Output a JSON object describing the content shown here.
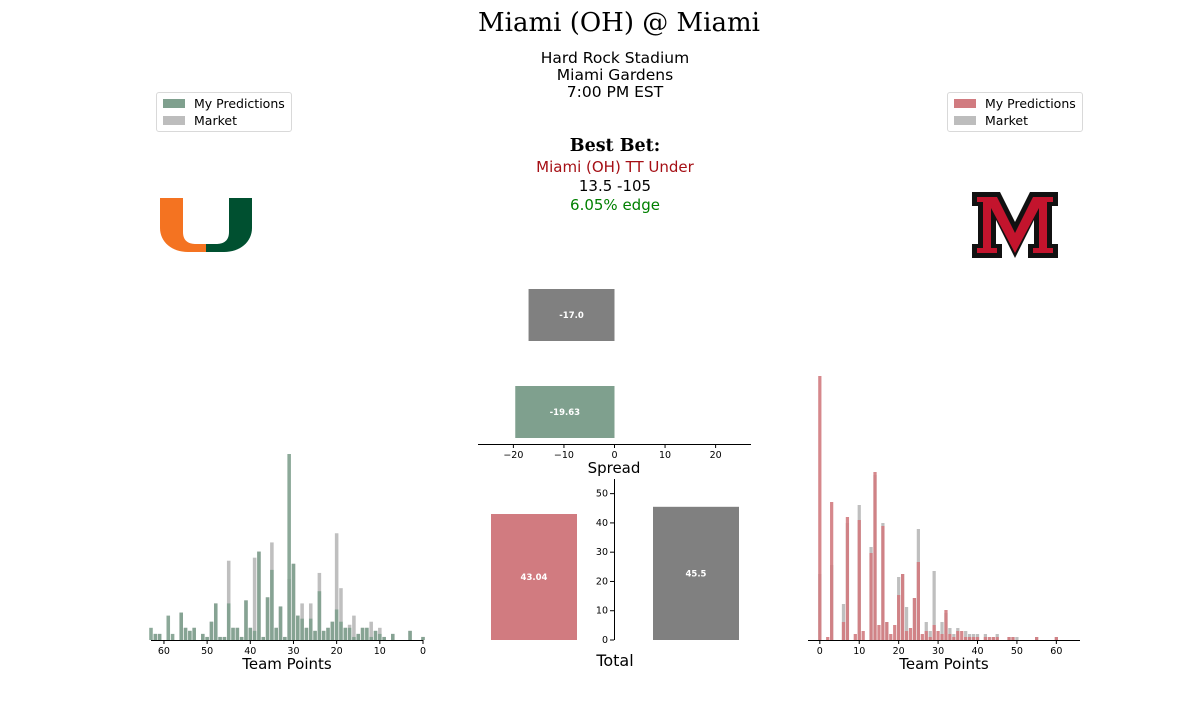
{
  "header": {
    "title": "Miami (OH) @ Miami",
    "stadium": "Hard Rock Stadium",
    "city": "Miami Gardens",
    "time": "7:00 PM EST"
  },
  "best_bet": {
    "title": "Best Bet:",
    "pick": "Miami (OH) TT Under",
    "line": "13.5 -105",
    "edge": "6.05% edge"
  },
  "colors": {
    "home": "#7fa08e",
    "away": "#d17b80",
    "market": "#808080",
    "market_light": "#bdbdbd",
    "pick": "#a50f15",
    "edge": "#008000"
  },
  "left_legend": {
    "predictions": "My Predictions",
    "market": "Market"
  },
  "right_legend": {
    "predictions": "My Predictions",
    "market": "Market"
  },
  "logos": {
    "home": "miami-u-logo",
    "away": "miami-oh-m-logo"
  },
  "chart_data": [
    {
      "id": "home-points",
      "type": "bar",
      "xlabel": "Team Points",
      "x_reversed": true,
      "xlim": [
        63,
        0
      ],
      "xticks": [
        60,
        50,
        40,
        30,
        20,
        10,
        0
      ],
      "series": [
        {
          "name": "My Predictions",
          "x": [
            63,
            62,
            61,
            59,
            58,
            56,
            55,
            54,
            53,
            51,
            50,
            49,
            48,
            47,
            46,
            45,
            44,
            43,
            42,
            41,
            40,
            39,
            38,
            37,
            36,
            35,
            34,
            33,
            32,
            31,
            30,
            29,
            28,
            27,
            26,
            25,
            24,
            23,
            22,
            21,
            20,
            19,
            18,
            17,
            16,
            15,
            14,
            13,
            12,
            11,
            10,
            9,
            7,
            3,
            0
          ],
          "values": [
            4,
            2,
            2,
            8,
            2,
            9,
            4,
            3,
            4,
            2,
            1,
            6,
            12,
            1,
            1,
            12,
            4,
            4,
            1,
            13,
            4,
            3,
            29,
            1,
            14,
            23,
            4,
            11,
            1,
            61,
            25,
            8,
            7,
            4,
            7,
            3,
            16,
            3,
            4,
            6,
            10,
            6,
            4,
            4,
            1,
            2,
            4,
            4,
            1,
            3,
            2,
            1,
            2,
            3,
            1
          ]
        },
        {
          "name": "Market",
          "x": [
            62,
            61,
            56,
            55,
            54,
            53,
            51,
            50,
            49,
            48,
            47,
            46,
            45,
            44,
            43,
            42,
            41,
            40,
            39,
            38,
            37,
            36,
            35,
            34,
            33,
            32,
            31,
            30,
            29,
            28,
            27,
            26,
            25,
            24,
            23,
            22,
            21,
            20,
            19,
            18,
            17,
            16,
            15,
            14,
            13,
            12,
            11,
            10,
            9,
            7,
            3,
            0
          ],
          "values": [
            2,
            2,
            9,
            4,
            3,
            4,
            2,
            1,
            6,
            12,
            1,
            1,
            26,
            4,
            4,
            1,
            13,
            4,
            27,
            29,
            1,
            14,
            32,
            4,
            11,
            1,
            20,
            25,
            8,
            12,
            4,
            12,
            3,
            22,
            3,
            4,
            6,
            35,
            17,
            4,
            5,
            8,
            2,
            4,
            4,
            6,
            3,
            4,
            1,
            2,
            3,
            1
          ]
        }
      ]
    },
    {
      "id": "spread",
      "type": "bar",
      "orientation": "horizontal",
      "xlabel": "Spread",
      "xlim": [
        -27,
        27
      ],
      "xticks": [
        -20,
        -10,
        0,
        10,
        20
      ],
      "series": [
        {
          "name": "Market",
          "value": -17.0,
          "label": "-17.0"
        },
        {
          "name": "My Predictions",
          "value": -19.63,
          "label": "-19.63"
        }
      ]
    },
    {
      "id": "total",
      "type": "bar",
      "xlabel": "Total",
      "ylim": [
        0,
        55
      ],
      "yticks": [
        0,
        10,
        20,
        30,
        40,
        50
      ],
      "series": [
        {
          "name": "My Predictions",
          "value": 43.04,
          "label": "43.04"
        },
        {
          "name": "Market",
          "value": 45.5,
          "label": "45.5"
        }
      ]
    },
    {
      "id": "away-points",
      "type": "bar",
      "xlabel": "Team Points",
      "xlim": [
        -3,
        66
      ],
      "xticks": [
        0,
        10,
        20,
        30,
        40,
        50,
        60
      ],
      "series": [
        {
          "name": "My Predictions",
          "x": [
            0,
            2,
            3,
            6,
            7,
            9,
            10,
            11,
            13,
            14,
            15,
            16,
            17,
            18,
            19,
            20,
            21,
            22,
            23,
            24,
            25,
            26,
            27,
            28,
            29,
            30,
            31,
            32,
            33,
            34,
            35,
            36,
            37,
            38,
            39,
            40,
            42,
            43,
            44,
            45,
            48,
            49,
            55,
            60
          ],
          "values": [
            88,
            1,
            46,
            6,
            41,
            2,
            40,
            3,
            29,
            56,
            5,
            38,
            6,
            2,
            5,
            15,
            22,
            3,
            4,
            14,
            26,
            2,
            3,
            1,
            5,
            3,
            2,
            10,
            2,
            1,
            3,
            3,
            1,
            1,
            1,
            1,
            1,
            1,
            1,
            1,
            1,
            1,
            1,
            1
          ]
        },
        {
          "name": "Market",
          "x": [
            0,
            3,
            6,
            7,
            10,
            13,
            14,
            16,
            17,
            20,
            21,
            22,
            24,
            25,
            27,
            28,
            29,
            31,
            32,
            33,
            34,
            35,
            37,
            38,
            39,
            40,
            42,
            44,
            45,
            48,
            49,
            50,
            55,
            60
          ],
          "values": [
            22,
            25,
            12,
            39,
            45,
            31,
            55,
            39,
            6,
            21,
            22,
            11,
            14,
            37,
            6,
            3,
            23,
            6,
            9,
            4,
            2,
            4,
            3,
            2,
            2,
            2,
            2,
            1,
            2,
            1,
            1,
            1,
            1,
            1
          ]
        }
      ]
    }
  ]
}
